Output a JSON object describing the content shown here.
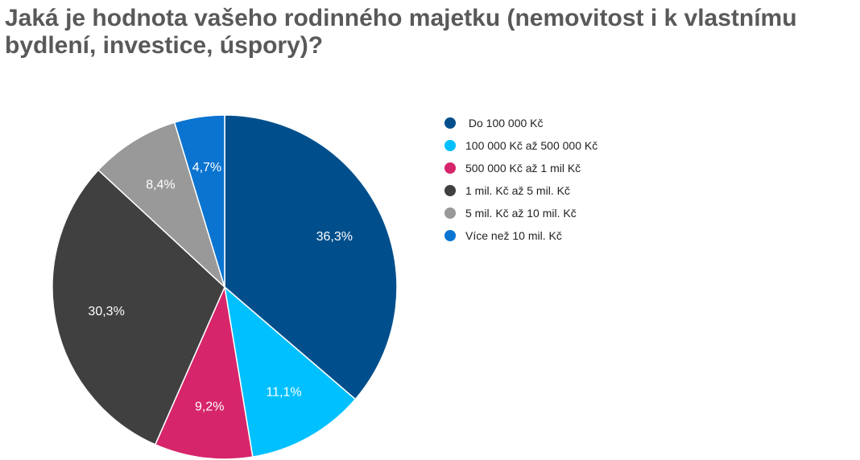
{
  "chart_data": {
    "type": "pie",
    "title": "Jaká je hodnota vašeho rodinného majetku (nemovitost i k vlastnímu bydlení, investice, úspory)?",
    "legend_position": "right",
    "slices": [
      {
        "label": " Do 100 000 Kč",
        "value": 36.3,
        "value_label": "36,3%",
        "color": "#004f8c"
      },
      {
        "label": "100 000 Kč až 500 000 Kč",
        "value": 11.1,
        "value_label": "11,1%",
        "color": "#00c0ff"
      },
      {
        "label": "500 000 Kč až 1 mil Kč",
        "value": 9.2,
        "value_label": "9,2%",
        "color": "#d6256a"
      },
      {
        "label": "1 mil. Kč až 5 mil. Kč",
        "value": 30.3,
        "value_label": "30,3%",
        "color": "#404040"
      },
      {
        "label": "5 mil. Kč až 10 mil. Kč",
        "value": 8.4,
        "value_label": "8,4%",
        "color": "#999999"
      },
      {
        "label": "Více než 10 mil. Kč",
        "value": 4.7,
        "value_label": "4,7%",
        "color": "#0a74d0"
      }
    ]
  }
}
